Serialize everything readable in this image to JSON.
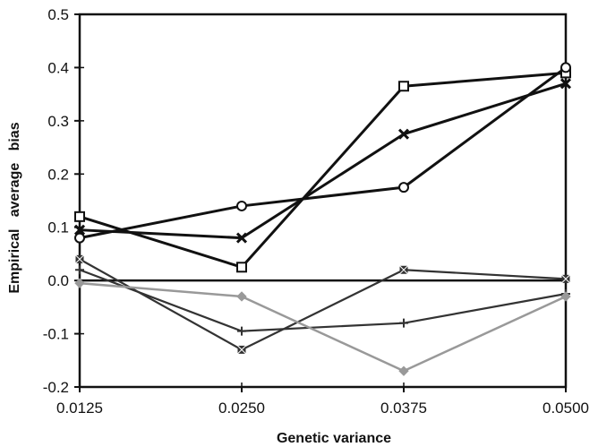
{
  "chart_data": {
    "type": "line",
    "title": "",
    "xlabel": "Genetic variance",
    "ylabel": "Empirical   average   bias",
    "x": [
      0.0125,
      0.025,
      0.0375,
      0.05
    ],
    "x_tick_labels": [
      "0.0125",
      "0.0250",
      "0.0375",
      "0.0500"
    ],
    "xlim": [
      0.0125,
      0.05
    ],
    "y_ticks": [
      -0.2,
      -0.1,
      0.0,
      0.1,
      0.2,
      0.3,
      0.4,
      0.5
    ],
    "y_tick_labels": [
      "-0.2",
      "-0.1",
      "0.0",
      "0.1",
      "0.2",
      "0.3",
      "0.4",
      "0.5"
    ],
    "ylim": [
      -0.2,
      0.5
    ],
    "grid": false,
    "legend": "none",
    "zero_line": true,
    "series": [
      {
        "marker": "square",
        "color": "#111111",
        "values": [
          0.12,
          0.025,
          0.365,
          0.39
        ]
      },
      {
        "marker": "x",
        "color": "#111111",
        "values": [
          0.095,
          0.08,
          0.275,
          0.37
        ]
      },
      {
        "marker": "circle",
        "color": "#111111",
        "values": [
          0.08,
          0.14,
          0.175,
          0.4
        ]
      },
      {
        "marker": "asterisk",
        "color": "#333333",
        "values": [
          0.04,
          -0.13,
          0.02,
          0.003
        ]
      },
      {
        "marker": "plus",
        "color": "#333333",
        "values": [
          0.02,
          -0.095,
          -0.08,
          -0.025
        ]
      },
      {
        "marker": "diamond",
        "color": "#999999",
        "values": [
          -0.005,
          -0.03,
          -0.17,
          -0.03
        ]
      }
    ]
  }
}
